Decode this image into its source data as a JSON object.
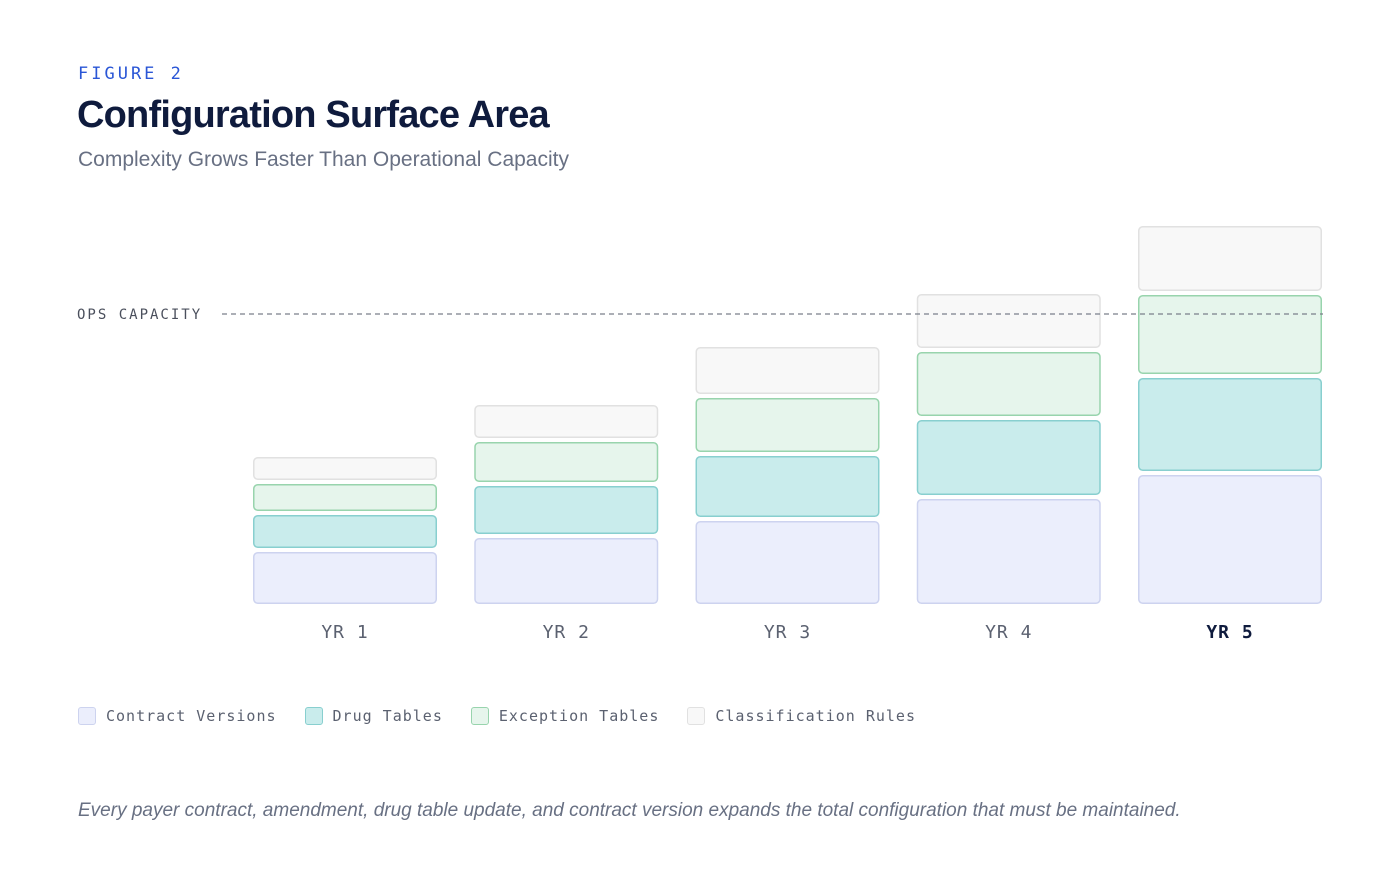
{
  "figure_label": "FIGURE 2",
  "title": "Configuration Surface Area",
  "subtitle": "Complexity Grows Faster Than Operational Capacity",
  "footnote": "Every payer contract, amendment, drug table update, and contract version expands the total configuration that must be maintained.",
  "colors": {
    "contract_fill": "#ebeefc",
    "contract_stroke": "#cdd3ef",
    "drug_fill": "#c9ecec",
    "drug_stroke": "#88cfcf",
    "exception_fill": "#e6f5ec",
    "exception_stroke": "#98d4ad",
    "rules_fill": "#f8f8f8",
    "rules_stroke": "#e1e1e1",
    "capacity_line": "#7a7f8a"
  },
  "chart_data": {
    "type": "bar",
    "stacked": true,
    "categories": [
      "YR 1",
      "YR 2",
      "YR 3",
      "YR 4",
      "YR 5"
    ],
    "highlight_category": "YR 5",
    "series": [
      {
        "name": "Contract Versions",
        "key": "contract",
        "values": [
          52,
          66,
          83,
          105,
          129
        ]
      },
      {
        "name": "Drug Tables",
        "key": "drug",
        "values": [
          37,
          52,
          65,
          79,
          97
        ]
      },
      {
        "name": "Exception Tables",
        "key": "exception",
        "values": [
          31,
          44,
          58,
          68,
          83
        ]
      },
      {
        "name": "Classification Rules",
        "key": "rules",
        "values": [
          27,
          37,
          51,
          58,
          69
        ]
      }
    ],
    "reference_line": {
      "label": "OPS CAPACITY",
      "value": 290
    },
    "ylim": [
      0,
      392
    ],
    "grid": false,
    "legend_position": "bottom-left"
  }
}
